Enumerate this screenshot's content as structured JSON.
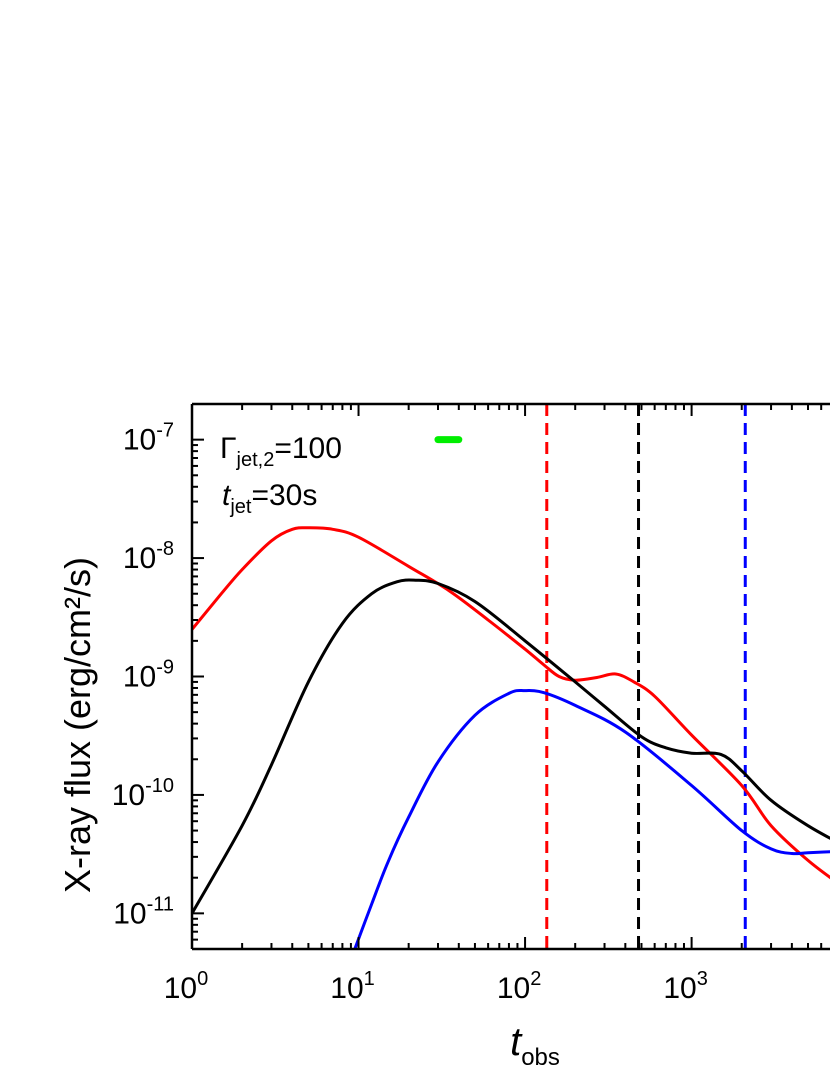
{
  "chart_data": {
    "type": "line",
    "xlabel": {
      "main": "t",
      "sub": "obs"
    },
    "ylabel": "X-ray flux (erg/cm²/s)",
    "x_scale": "log",
    "y_scale": "log",
    "xlim": [
      1,
      8000
    ],
    "ylim": [
      5e-12,
      2e-07
    ],
    "x_ticks": [
      {
        "value": 1,
        "base": "10",
        "exp": "0"
      },
      {
        "value": 10,
        "base": "10",
        "exp": "1"
      },
      {
        "value": 100,
        "base": "10",
        "exp": "2"
      },
      {
        "value": 1000,
        "base": "10",
        "exp": "3"
      }
    ],
    "y_ticks": [
      {
        "value": 1e-11,
        "base": "10",
        "exp": "-11"
      },
      {
        "value": 1e-10,
        "base": "10",
        "exp": "-10"
      },
      {
        "value": 1e-09,
        "base": "10",
        "exp": "-9"
      },
      {
        "value": 1e-08,
        "base": "10",
        "exp": "-8"
      },
      {
        "value": 1e-07,
        "base": "10",
        "exp": "-7"
      }
    ],
    "annotations": [
      {
        "id": "gamma",
        "main": "Γ",
        "sub": "jet,2",
        "rest": "=100"
      },
      {
        "id": "tjet",
        "main": "t",
        "sub": "jet",
        "rest": "=30s"
      }
    ],
    "legend_marker": {
      "color": "#00ee00",
      "x": [
        30,
        40
      ],
      "y": 1e-07
    },
    "series": [
      {
        "color": "#ff0000",
        "x": [
          1,
          1.5,
          2,
          3,
          4,
          5,
          7,
          10,
          20,
          35,
          60,
          100,
          130,
          160,
          200,
          270,
          350,
          450,
          600,
          1000,
          2000,
          3000,
          5000,
          8000
        ],
        "y": [
          2.5e-09,
          5e-09,
          8e-09,
          1.4e-08,
          1.75e-08,
          1.8e-08,
          1.75e-08,
          1.5e-08,
          8.5e-09,
          5.3e-09,
          3e-09,
          1.7e-09,
          1.25e-09,
          1e-09,
          9.3e-10,
          9.8e-10,
          1.05e-09,
          9e-10,
          6.8e-10,
          3.2e-10,
          1.2e-10,
          5.5e-11,
          2.8e-11,
          1.7e-11
        ]
      },
      {
        "color": "#000000",
        "x": [
          1,
          2,
          3,
          5,
          8,
          12,
          17,
          22,
          30,
          50,
          100,
          200,
          300,
          500,
          700,
          1000,
          1500,
          2000,
          3000,
          5000,
          8000
        ],
        "y": [
          1e-11,
          5.5e-11,
          1.8e-10,
          9e-10,
          2.8e-09,
          5e-09,
          6.3e-09,
          6.5e-09,
          6.1e-09,
          4.3e-09,
          2e-09,
          9e-10,
          5.6e-10,
          3.1e-10,
          2.5e-10,
          2.25e-10,
          2.2e-10,
          1.6e-10,
          9e-11,
          5.5e-11,
          3.8e-11
        ]
      },
      {
        "color": "#0000ff",
        "x": [
          9.5,
          12,
          15,
          20,
          30,
          50,
          80,
          100,
          130,
          200,
          400,
          1000,
          2000,
          3000,
          4000,
          5000,
          8000
        ],
        "y": [
          5e-12,
          1.2e-11,
          2.7e-11,
          6.5e-11,
          1.9e-10,
          4.7e-10,
          7.2e-10,
          7.6e-10,
          7.3e-10,
          5.7e-10,
          3.4e-10,
          1.2e-10,
          5e-11,
          3.5e-11,
          3.2e-11,
          3.25e-11,
          3.35e-11
        ]
      }
    ],
    "vlines": [
      {
        "x": 135,
        "color": "#ff0000",
        "style": "dashed"
      },
      {
        "x": 480,
        "color": "#000000",
        "style": "dashed"
      },
      {
        "x": 2100,
        "color": "#0000ff",
        "style": "dashed"
      }
    ]
  }
}
